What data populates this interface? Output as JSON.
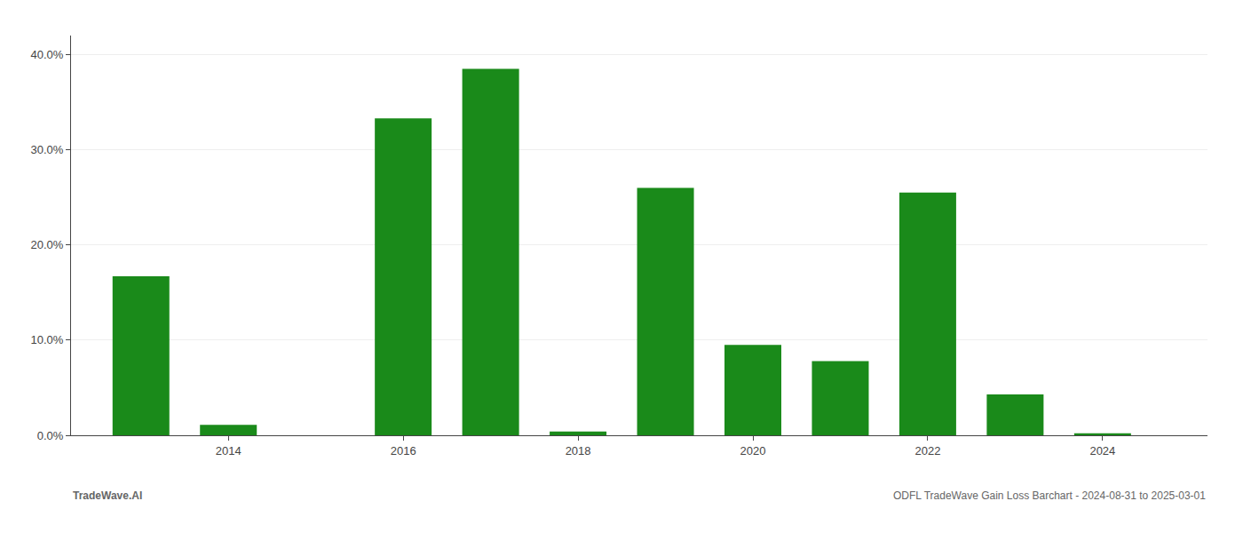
{
  "chart_data": {
    "type": "bar",
    "x": [
      2013,
      2014,
      2015,
      2016,
      2017,
      2018,
      2019,
      2020,
      2021,
      2022,
      2023,
      2024
    ],
    "values": [
      0.167,
      0.011,
      0.0,
      0.333,
      0.385,
      0.004,
      0.26,
      0.095,
      0.078,
      0.255,
      0.043,
      0.002
    ],
    "color": "#1a8a1a",
    "xlim": [
      2012.2,
      2025.2
    ],
    "xticks": [
      2014,
      2016,
      2018,
      2020,
      2022,
      2024
    ],
    "ylim": [
      0,
      0.42
    ],
    "yticks": [
      {
        "value": 0.0,
        "label": "0.0%"
      },
      {
        "value": 0.1,
        "label": "10.0%"
      },
      {
        "value": 0.2,
        "label": "20.0%"
      },
      {
        "value": 0.3,
        "label": "30.0%"
      },
      {
        "value": 0.4,
        "label": "40.0%"
      }
    ],
    "grid": true,
    "annotations": [
      {
        "text": "TradeWave.AI"
      },
      {
        "text": "ODFL TradeWave Gain Loss Barchart - 2024-08-31 to 2025-03-01"
      }
    ]
  }
}
